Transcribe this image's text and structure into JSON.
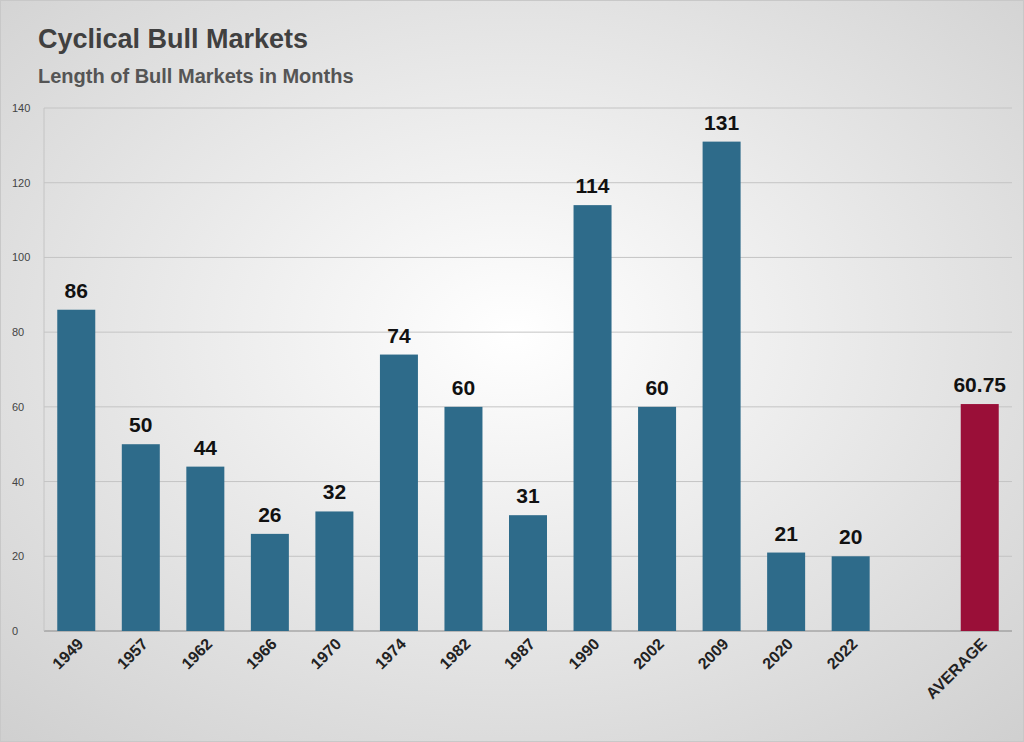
{
  "chart_data": {
    "type": "bar",
    "title": "Cyclical Bull Markets",
    "subtitle": "Length of Bull Markets in Months",
    "categories": [
      "1949",
      "1957",
      "1962",
      "1966",
      "1970",
      "1974",
      "1982",
      "1987",
      "1990",
      "2002",
      "2009",
      "2020",
      "2022",
      null,
      "AVERAGE"
    ],
    "values": [
      86,
      50,
      44,
      26,
      32,
      74,
      60,
      31,
      114,
      60,
      131,
      21,
      20,
      null,
      60.75
    ],
    "colors": [
      "#2e6b8a",
      "#2e6b8a",
      "#2e6b8a",
      "#2e6b8a",
      "#2e6b8a",
      "#2e6b8a",
      "#2e6b8a",
      "#2e6b8a",
      "#2e6b8a",
      "#2e6b8a",
      "#2e6b8a",
      "#2e6b8a",
      "#2e6b8a",
      null,
      "#9a0f38"
    ],
    "ylim": [
      0,
      140
    ],
    "yticks": [
      0,
      20,
      40,
      60,
      80,
      100,
      120,
      140
    ],
    "grid": true,
    "data_labels": true
  }
}
